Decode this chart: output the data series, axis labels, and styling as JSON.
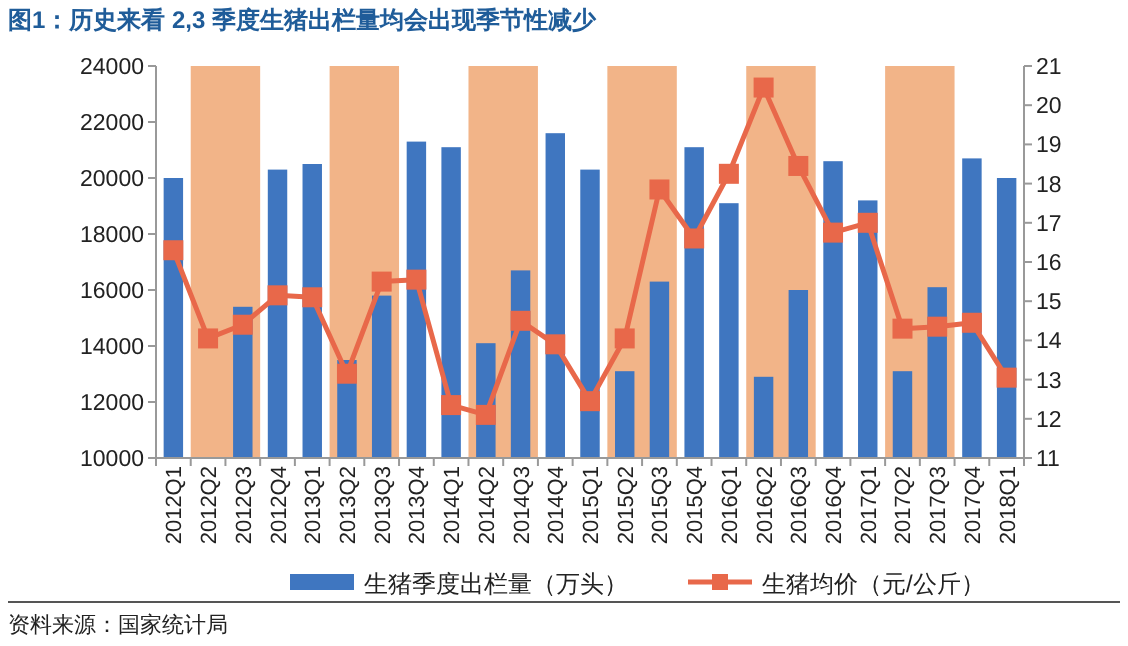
{
  "chart_data": {
    "type": "bar",
    "title": "图1：历史来看 2,3 季度生猪出栏量均会出现季节性减少",
    "categories": [
      "2012Q1",
      "2012Q2",
      "2012Q3",
      "2012Q4",
      "2013Q1",
      "2013Q2",
      "2013Q3",
      "2013Q4",
      "2014Q1",
      "2014Q2",
      "2014Q3",
      "2014Q4",
      "2015Q1",
      "2015Q2",
      "2015Q3",
      "2015Q4",
      "2016Q1",
      "2016Q2",
      "2016Q3",
      "2016Q4",
      "2017Q1",
      "2017Q2",
      "2017Q3",
      "2017Q4",
      "2018Q1"
    ],
    "series": [
      {
        "name": "生猪季度出栏量（万头）",
        "color": "#3f76c0",
        "values": [
          20000,
          null,
          15400,
          20300,
          20500,
          13500,
          15800,
          21300,
          21100,
          14100,
          16700,
          21600,
          20300,
          13100,
          16300,
          21100,
          19100,
          12900,
          16000,
          20600,
          19200,
          13100,
          16100,
          20700,
          20000
        ]
      },
      {
        "name": "生猪均价（元/公斤）",
        "type": "line",
        "axis": "y2",
        "color": "#e8684a",
        "marker": "square",
        "values": [
          16.3,
          14.05,
          14.4,
          15.15,
          15.1,
          13.15,
          15.5,
          15.55,
          12.35,
          12.1,
          14.5,
          13.9,
          12.45,
          14.05,
          17.85,
          16.6,
          18.25,
          20.45,
          18.45,
          16.75,
          17.0,
          14.3,
          14.35,
          14.45,
          13.05
        ]
      }
    ],
    "ylim": [
      10000,
      24000
    ],
    "yticks": [
      10000,
      12000,
      14000,
      16000,
      18000,
      20000,
      22000,
      24000
    ],
    "y2lim": [
      11,
      21
    ],
    "y2ticks": [
      11,
      12,
      13,
      14,
      15,
      16,
      17,
      18,
      19,
      20,
      21
    ],
    "bands": [
      {
        "axis": "x",
        "from": "2012Q2",
        "to": "2012Q3",
        "color": "#f2b488"
      },
      {
        "axis": "x",
        "from": "2013Q2",
        "to": "2013Q3",
        "color": "#f2b488"
      },
      {
        "axis": "x",
        "from": "2014Q2",
        "to": "2014Q3",
        "color": "#f2b488"
      },
      {
        "axis": "x",
        "from": "2015Q2",
        "to": "2015Q3",
        "color": "#f2b488"
      },
      {
        "axis": "x",
        "from": "2016Q2",
        "to": "2016Q3",
        "color": "#f2b488"
      },
      {
        "axis": "x",
        "from": "2017Q2",
        "to": "2017Q3",
        "color": "#f2b488"
      }
    ],
    "legend": "bottom",
    "grid": false,
    "annotations": [
      "资料来源：国家统计局"
    ]
  }
}
